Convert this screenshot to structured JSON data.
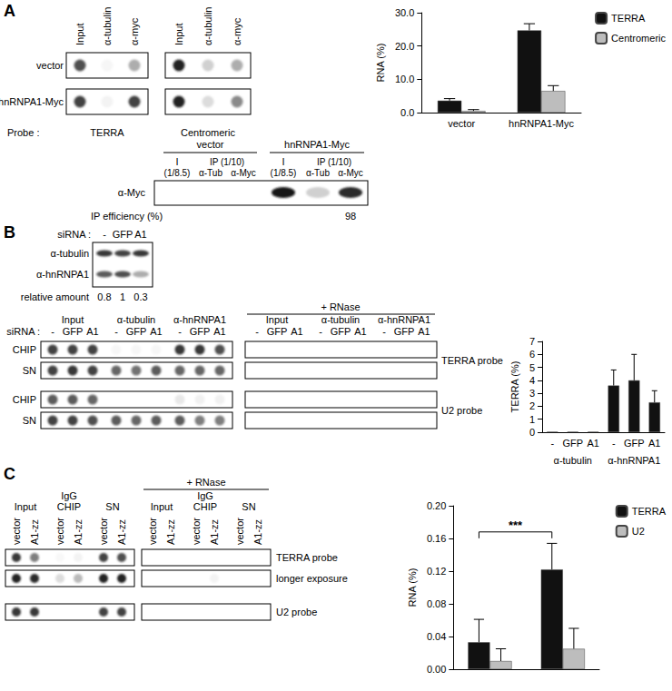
{
  "chart_data": [
    {
      "type": "bar",
      "y_label": "RNA (%)",
      "categories": [
        "vector",
        "hnRNPA1-Myc"
      ],
      "series": [
        {
          "name": "TERRA",
          "color": "#111111",
          "values": [
            3.6,
            24.7
          ],
          "errors": [
            0.6,
            2.0
          ]
        },
        {
          "name": "Centromeric",
          "color": "#bdbdbd",
          "values": [
            0.5,
            6.5
          ],
          "errors": [
            0.4,
            1.6
          ]
        }
      ],
      "ylim": [
        0,
        30
      ],
      "yticks": [
        {
          "value": 0,
          "label": "0.0"
        },
        {
          "value": 10,
          "label": "10.0"
        },
        {
          "value": 20,
          "label": "20.0"
        },
        {
          "value": 30,
          "label": "30.0"
        }
      ],
      "legend": "top-right",
      "grid": false
    },
    {
      "type": "bar",
      "y_label": "TERRA (%)",
      "categories": [
        "-",
        "GFP",
        "A1",
        "-",
        "GFP",
        "A1"
      ],
      "groups": [
        "α-tubulin",
        "α-hnRNPA1"
      ],
      "color": "#111111",
      "values": [
        0.03,
        0.03,
        0.03,
        3.6,
        4.0,
        2.3
      ],
      "errors": [
        0,
        0,
        0,
        1.2,
        2.0,
        0.9
      ],
      "ylim": [
        0,
        7
      ],
      "yticks": [
        0,
        1,
        2,
        3,
        4,
        5,
        6,
        7
      ],
      "grid": false
    },
    {
      "type": "bar",
      "y_label": "RNA (%)",
      "categories": [
        null,
        null
      ],
      "series": [
        {
          "name": "TERRA",
          "color": "#111111",
          "values": [
            0.033,
            0.122
          ],
          "errors": [
            0.028,
            0.032
          ]
        },
        {
          "name": "U2",
          "color": "#bdbdbd",
          "values": [
            0.01,
            0.025
          ],
          "errors": [
            0.015,
            0.025
          ]
        }
      ],
      "ylim": [
        0,
        0.2
      ],
      "yticks": [
        {
          "value": 0,
          "label": "0.00"
        },
        {
          "value": 0.04,
          "label": "0.04"
        },
        {
          "value": 0.08,
          "label": "0.08"
        },
        {
          "value": 0.12,
          "label": "0.12"
        },
        {
          "value": 0.16,
          "label": "0.16"
        },
        {
          "value": 0.2,
          "label": "0.20"
        }
      ],
      "legend": "top-right",
      "grid": false,
      "annotations": [
        {
          "text": "***",
          "series": "TERRA",
          "y": 0.168
        }
      ]
    }
  ],
  "figure": {
    "A": {
      "label": "A",
      "rows": [
        "vector",
        "hnRNPA1-Myc"
      ],
      "probe_prefix": "Probe :",
      "blots": [
        {
          "columns": [
            "Input",
            "α-tubulin",
            "α-myc"
          ],
          "probe": "TERRA",
          "spots": [
            [
              0.75,
              0.04,
              0.35
            ],
            [
              0.8,
              0.05,
              0.8
            ]
          ]
        },
        {
          "columns": [
            "Input",
            "α-tubulin",
            "α-myc"
          ],
          "probe": "Centromeric",
          "spots": [
            [
              0.95,
              0.2,
              0.35
            ],
            [
              0.95,
              0.15,
              0.5
            ]
          ]
        }
      ],
      "western": {
        "groups": [
          "vector",
          "hnRNPA1-Myc"
        ],
        "input_lane": "I",
        "input_ratio": "(1/8.5)",
        "ip_label": "IP (1/10)",
        "ip_lanes": [
          "α-Tub",
          "α-Myc"
        ],
        "row": "α-Myc",
        "bands": [
          [
            0,
            0,
            0
          ],
          [
            1,
            0.2,
            0.9
          ]
        ],
        "efficiency_label": "IP efficiency (%)",
        "efficiency": {
          "group": "hnRNPA1-Myc",
          "value": 98
        }
      }
    },
    "B": {
      "label": "B",
      "sirna_label": "siRNA :",
      "sirna": [
        "-",
        "GFP",
        "A1"
      ],
      "western": {
        "rows": [
          "α-tubulin",
          "α-hnRNPA1"
        ],
        "bands": [
          [
            0.85,
            0.8,
            0.85
          ],
          [
            0.7,
            0.75,
            0.35
          ]
        ],
        "relative_label": "relative amount",
        "relative": [
          0.8,
          1,
          0.3
        ]
      },
      "blot": {
        "groups": [
          "Input",
          "α-tubulin",
          "α-hnRNPA1"
        ],
        "rnase_label": "+ RNase",
        "probes": [
          {
            "name": "TERRA probe",
            "rows": [
              {
                "label": "CHIP",
                "spots": [
                  0.8,
                  0.8,
                  0.8,
                  0.04,
                  0.04,
                  0.04,
                  0.85,
                  0.85,
                  0.75,
                  0,
                  0,
                  0,
                  0,
                  0,
                  0,
                  0,
                  0,
                  0
                ]
              },
              {
                "label": "SN",
                "spots": [
                  0.8,
                  0.85,
                  0.8,
                  0.65,
                  0.6,
                  0.7,
                  0.65,
                  0.65,
                  0.65,
                  0,
                  0,
                  0,
                  0,
                  0,
                  0,
                  0,
                  0,
                  0
                ]
              }
            ]
          },
          {
            "name": "U2 probe",
            "rows": [
              {
                "label": "CHIP",
                "spots": [
                  0.7,
                  0.7,
                  0.65,
                  0,
                  0,
                  0,
                  0.1,
                  0.06,
                  0.06,
                  0,
                  0,
                  0,
                  0,
                  0,
                  0,
                  0,
                  0,
                  0
                ]
              },
              {
                "label": "SN",
                "spots": [
                  0.8,
                  0.8,
                  0.75,
                  0.7,
                  0.65,
                  0.7,
                  0.7,
                  0.55,
                  0.55,
                  0,
                  0,
                  0,
                  0,
                  0,
                  0,
                  0,
                  0,
                  0
                ]
              }
            ]
          }
        ]
      }
    },
    "C": {
      "label": "C",
      "blot": {
        "groups": [
          "Input",
          "IgG\nCHIP",
          "SN"
        ],
        "lanes": [
          "vector",
          "A1-zz"
        ],
        "rnase_label": "+ RNase",
        "rows": [
          {
            "probe": "TERRA probe",
            "spots": [
              0.85,
              0.55,
              0.03,
              0.05,
              0.8,
              0.75,
              0,
              0,
              0,
              0,
              0,
              0
            ]
          },
          {
            "probe": "longer exposure",
            "spots": [
              0.95,
              0.9,
              0.15,
              0.3,
              0.95,
              0.95,
              0,
              0,
              0,
              0.05,
              0,
              0
            ]
          },
          {
            "probe": "U2 probe",
            "spots": [
              0.85,
              0.85,
              0,
              0,
              0.8,
              0.8,
              0,
              0,
              0,
              0,
              0,
              0
            ]
          }
        ]
      }
    }
  }
}
